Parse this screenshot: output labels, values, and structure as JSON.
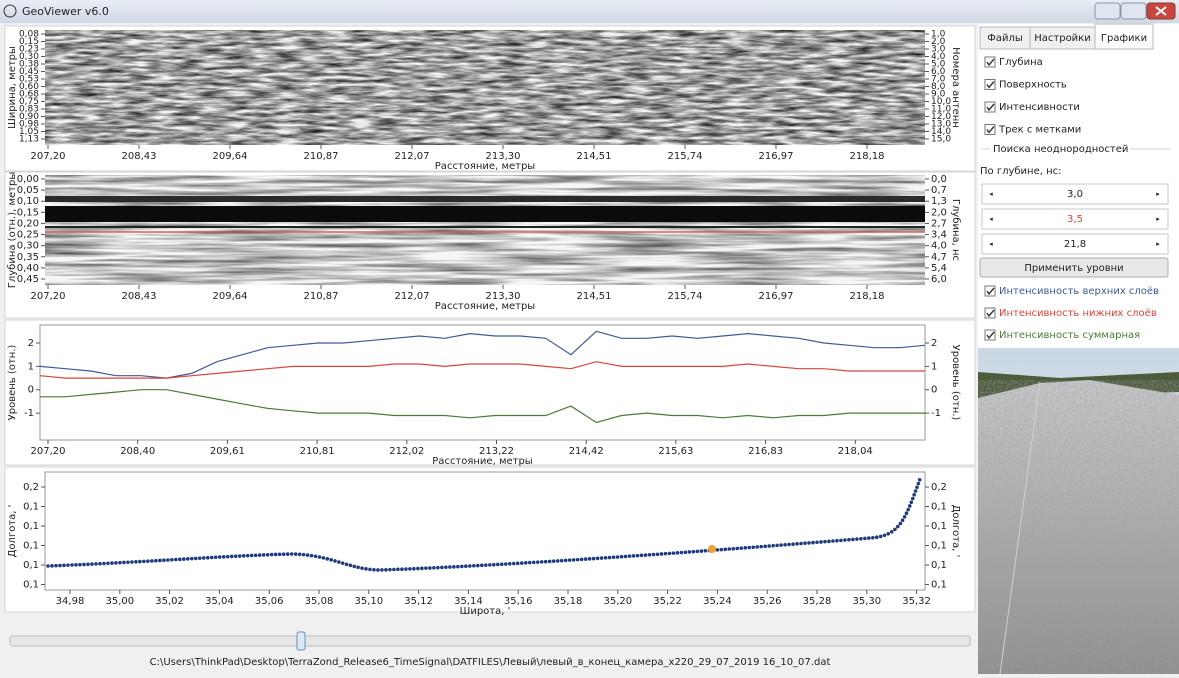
{
  "window": {
    "title": "GeoViewer v6.0"
  },
  "panels": [
    {
      "ylabel_left": "Ширина, метры",
      "ylabel_right": "Номера антенн",
      "yticks_left": [
        "0,08",
        "0,15",
        "0,23",
        "0,30",
        "0,38",
        "0,45",
        "0,53",
        "0,60",
        "0,68",
        "0,75",
        "0,83",
        "0,90",
        "0,98",
        "1,05",
        "1,13"
      ],
      "yticks_right": [
        "1,0",
        "2,0",
        "3,0",
        "4,0",
        "5,0",
        "6,0",
        "7,0",
        "8,0",
        "9,0",
        "10,0",
        "11,0",
        "12,0",
        "13,0",
        "14,0",
        "15,0"
      ],
      "xticks": [
        "207,20",
        "208,43",
        "209,64",
        "210,87",
        "212,07",
        "213,30",
        "214,51",
        "215,74",
        "216,97",
        "218,18"
      ],
      "xlabel": "Расстояние, метры"
    },
    {
      "ylabel_left": "Глубина (отн.), метры",
      "ylabel_right": "Глубина, нс",
      "yticks_left": [
        "0,00",
        "0,05",
        "0,10",
        "0,15",
        "0,20",
        "0,25",
        "0,30",
        "0,35",
        "0,40",
        "0,45"
      ],
      "yticks_right": [
        "0,0",
        "0,7",
        "1,3",
        "2,0",
        "2,7",
        "3,4",
        "4,0",
        "4,7",
        "5,4",
        "6,0"
      ],
      "xticks": [
        "207,20",
        "208,43",
        "209,64",
        "210,87",
        "212,07",
        "213,30",
        "214,51",
        "215,74",
        "216,97",
        "218,18"
      ],
      "xlabel": "Расстояние, метры"
    },
    {
      "ylabel_left": "Уровень (отн.)",
      "ylabel_right": "Уровень (отн.)",
      "ylim": [
        -2.15,
        2.77
      ],
      "yticks_left": [
        2,
        1,
        0,
        -1
      ],
      "yticks_right": [
        2,
        1,
        0,
        -1
      ],
      "xticks": [
        "207,20",
        "208,40",
        "209,61",
        "210,81",
        "212,02",
        "213,22",
        "214,42",
        "215,63",
        "216,83",
        "218,04"
      ],
      "xlabel": "Расстояние, метры",
      "series": [
        {
          "color": "#3f5a9a",
          "values": [
            1.0,
            0.9,
            0.8,
            0.6,
            0.6,
            0.5,
            0.7,
            1.2,
            1.5,
            1.8,
            1.9,
            2.0,
            2.0,
            2.1,
            2.2,
            2.3,
            2.2,
            2.4,
            2.3,
            2.3,
            2.2,
            1.5,
            2.5,
            2.2,
            2.2,
            2.3,
            2.2,
            2.3,
            2.4,
            2.3,
            2.2,
            2.0,
            1.9,
            1.8,
            1.8,
            1.9
          ]
        },
        {
          "color": "#d9453c",
          "values": [
            0.6,
            0.5,
            0.5,
            0.5,
            0.5,
            0.5,
            0.6,
            0.7,
            0.8,
            0.9,
            1.0,
            1.0,
            1.0,
            1.0,
            1.1,
            1.1,
            1.0,
            1.1,
            1.1,
            1.1,
            1.0,
            0.9,
            1.2,
            1.0,
            1.0,
            1.0,
            1.0,
            1.0,
            1.1,
            1.0,
            0.9,
            0.9,
            0.8,
            0.8,
            0.8,
            0.8
          ]
        },
        {
          "color": "#4d7a3a",
          "values": [
            -0.3,
            -0.3,
            -0.2,
            -0.1,
            0.0,
            0.0,
            -0.2,
            -0.4,
            -0.6,
            -0.8,
            -0.9,
            -1.0,
            -1.0,
            -1.0,
            -1.1,
            -1.1,
            -1.1,
            -1.2,
            -1.1,
            -1.1,
            -1.1,
            -0.7,
            -1.4,
            -1.1,
            -1.0,
            -1.1,
            -1.1,
            -1.2,
            -1.1,
            -1.2,
            -1.1,
            -1.1,
            -1.0,
            -1.0,
            -1.0,
            -1.0
          ]
        }
      ]
    },
    {
      "ylabel_left": "Долгота, '",
      "ylabel_right": "Долгота, '",
      "yticks_left": [
        "0,2",
        "0,1",
        "0,1",
        "0,1",
        "0,1",
        "0,1"
      ],
      "yticks_right": [
        "0,2",
        "0,1",
        "0,1",
        "0,1",
        "0,1",
        "0,1"
      ],
      "xticks": [
        "34,98",
        "35,00",
        "35,02",
        "35,04",
        "35,06",
        "35,08",
        "35,10",
        "35,12",
        "35,14",
        "35,16",
        "35,18",
        "35,20",
        "35,22",
        "35,24",
        "35,26",
        "35,28",
        "35,30",
        "35,32"
      ],
      "xlabel": "Широта, '"
    }
  ],
  "sidebar": {
    "tabs": [
      "Файлы",
      "Настройки",
      "Графики"
    ],
    "checks": [
      "Глубина",
      "Поверхность",
      "Интенсивности",
      "Трек с метками"
    ],
    "group_title": "Поиска неоднородностей",
    "depth_label": "По глубине, нс:",
    "spins": [
      "3,0",
      "3,5",
      "21,8"
    ],
    "apply_button": "Применить уровни",
    "intensity_checks": [
      "Интенсивность верхних слоёв",
      "Интенсивность нижних слоёв",
      "Интенсивность суммарная"
    ]
  },
  "footer": {
    "file_path": "C:\\Users\\ThinkPad\\Desktop\\TerraZond_Release6_TimeSignal\\DATFILES\\Левый\\левый_в_конец_камера_x220_29_07_2019 16_10_07.dat"
  }
}
